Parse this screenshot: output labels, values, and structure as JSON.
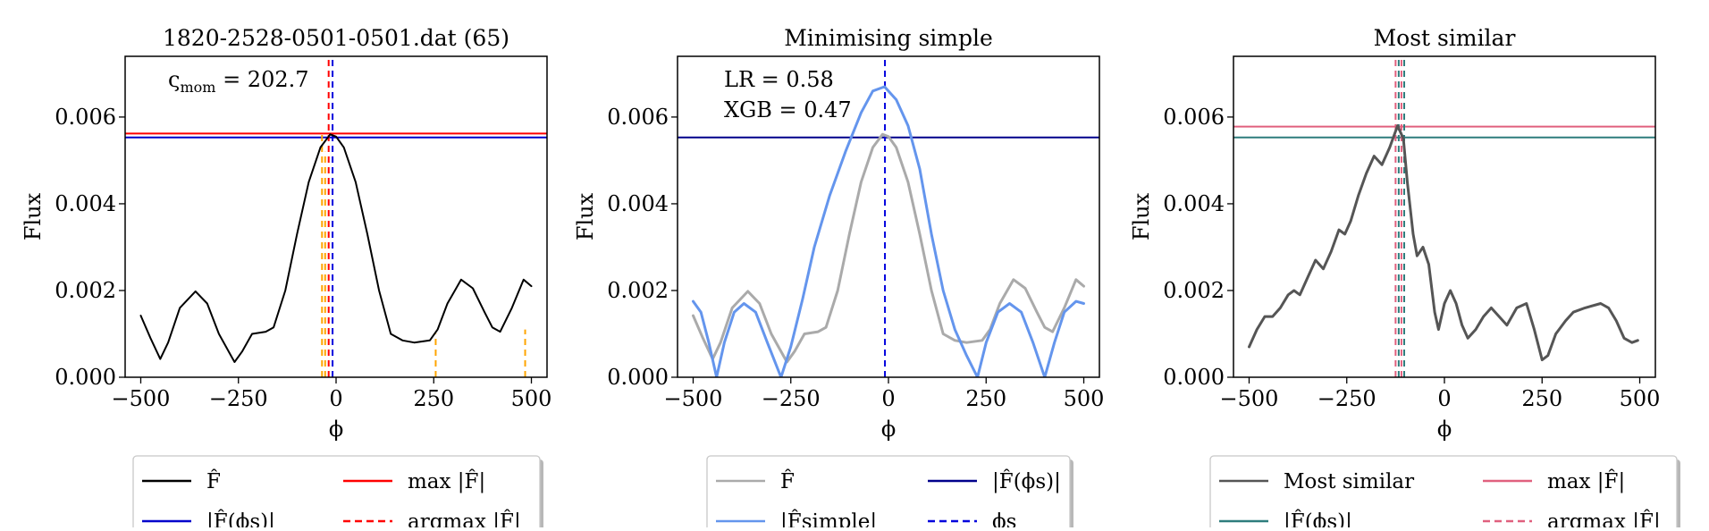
{
  "chart_data": [
    {
      "type": "line",
      "title": "1820-2528-0501-0501.dat (65)",
      "xlabel": "ϕ",
      "ylabel": "Flux",
      "xlim": [
        -540,
        540
      ],
      "ylim": [
        0,
        0.0074
      ],
      "xticks": [
        -500,
        -250,
        0,
        250,
        500
      ],
      "xtick_labels": [
        "−500",
        "−250",
        "0",
        "250",
        "500"
      ],
      "yticks": [
        0,
        0.002,
        0.004,
        0.006
      ],
      "ytick_labels": [
        "0.000",
        "0.002",
        "0.004",
        "0.006"
      ],
      "annotation": {
        "symbol": "ς",
        "sub": "mom",
        "text": " = 202.7"
      },
      "series": [
        {
          "key": "fhat",
          "color": "#000000",
          "style": "solid",
          "width": 2,
          "points": [
            [
              -500,
              0.00142
            ],
            [
              -475,
              0.0009
            ],
            [
              -450,
              0.00042
            ],
            [
              -430,
              0.0008
            ],
            [
              -400,
              0.0016
            ],
            [
              -360,
              0.00198
            ],
            [
              -330,
              0.0017
            ],
            [
              -300,
              0.001
            ],
            [
              -260,
              0.00035
            ],
            [
              -240,
              0.0006
            ],
            [
              -215,
              0.001
            ],
            [
              -180,
              0.00105
            ],
            [
              -160,
              0.00115
            ],
            [
              -130,
              0.002
            ],
            [
              -100,
              0.0033
            ],
            [
              -70,
              0.0045
            ],
            [
              -40,
              0.0053
            ],
            [
              -15,
              0.0056
            ],
            [
              0,
              0.00555
            ],
            [
              20,
              0.0053
            ],
            [
              50,
              0.0045
            ],
            [
              80,
              0.0033
            ],
            [
              110,
              0.002
            ],
            [
              140,
              0.001
            ],
            [
              170,
              0.00085
            ],
            [
              200,
              0.0008
            ],
            [
              240,
              0.00085
            ],
            [
              260,
              0.0011
            ],
            [
              285,
              0.0017
            ],
            [
              320,
              0.00225
            ],
            [
              350,
              0.00205
            ],
            [
              380,
              0.0015
            ],
            [
              400,
              0.00115
            ],
            [
              420,
              0.00105
            ],
            [
              450,
              0.0016
            ],
            [
              480,
              0.00225
            ],
            [
              500,
              0.0021
            ]
          ]
        }
      ],
      "hlines": [
        {
          "key": "max",
          "y": 0.00562,
          "color": "#ff0000",
          "style": "solid"
        },
        {
          "key": "fphis",
          "y": 0.00553,
          "color": "#0000cc",
          "style": "solid"
        }
      ],
      "vlines": [
        {
          "key": "argmax",
          "x": -19,
          "color": "#ff0000",
          "style": "dashed",
          "y0": 0,
          "y1": 0.0074
        },
        {
          "key": "phis",
          "x": -9,
          "color": "#0000dd",
          "style": "dashed",
          "y0": 0,
          "y1": 0.0074
        },
        {
          "key": "peak1",
          "x": -36,
          "color": "#ffa500",
          "style": "dashed",
          "y0": 0,
          "y1": 0.0056
        },
        {
          "key": "peak2",
          "x": -28,
          "color": "#ffa500",
          "style": "dashed",
          "y0": 0,
          "y1": 0.0052
        },
        {
          "key": "peak3",
          "x": 255,
          "color": "#ffa500",
          "style": "dashed",
          "y0": 0,
          "y1": 0.001
        },
        {
          "key": "peak4",
          "x": 484,
          "color": "#ffa500",
          "style": "dashed",
          "y0": 0,
          "y1": 0.0011
        }
      ],
      "legend": {
        "placement": "bottom",
        "items": [
          {
            "label": "F̂",
            "color": "#000000",
            "style": "solid"
          },
          {
            "label": "max |F̂|",
            "color": "#ff0000",
            "style": "solid"
          },
          {
            "label": "|F̂(ϕs)|",
            "color": "#0000cc",
            "style": "solid"
          },
          {
            "label": "argmax |F̂|",
            "color": "#ff0000",
            "style": "dashed"
          }
        ]
      }
    },
    {
      "type": "line",
      "title": "Minimising simple",
      "xlabel": "ϕ",
      "ylabel": "Flux",
      "xlim": [
        -540,
        540
      ],
      "ylim": [
        0,
        0.0074
      ],
      "xticks": [
        -500,
        -250,
        0,
        250,
        500
      ],
      "xtick_labels": [
        "−500",
        "−250",
        "0",
        "250",
        "500"
      ],
      "yticks": [
        0,
        0.002,
        0.004,
        0.006
      ],
      "ytick_labels": [
        "0.000",
        "0.002",
        "0.004",
        "0.006"
      ],
      "annotations": [
        "LR = 0.58",
        "XGB = 0.47"
      ],
      "series": [
        {
          "key": "fhat",
          "color": "#aaaaaa",
          "style": "solid",
          "width": 3,
          "points": [
            [
              -500,
              0.00142
            ],
            [
              -475,
              0.0009
            ],
            [
              -450,
              0.00042
            ],
            [
              -430,
              0.0008
            ],
            [
              -400,
              0.0016
            ],
            [
              -360,
              0.00198
            ],
            [
              -330,
              0.0017
            ],
            [
              -300,
              0.001
            ],
            [
              -260,
              0.00035
            ],
            [
              -240,
              0.0006
            ],
            [
              -215,
              0.001
            ],
            [
              -180,
              0.00105
            ],
            [
              -160,
              0.00115
            ],
            [
              -130,
              0.002
            ],
            [
              -100,
              0.0033
            ],
            [
              -70,
              0.0045
            ],
            [
              -40,
              0.0053
            ],
            [
              -15,
              0.0056
            ],
            [
              0,
              0.00555
            ],
            [
              20,
              0.0053
            ],
            [
              50,
              0.0045
            ],
            [
              80,
              0.0033
            ],
            [
              110,
              0.002
            ],
            [
              140,
              0.001
            ],
            [
              170,
              0.00085
            ],
            [
              200,
              0.0008
            ],
            [
              240,
              0.00085
            ],
            [
              260,
              0.0011
            ],
            [
              285,
              0.0017
            ],
            [
              320,
              0.00225
            ],
            [
              350,
              0.00205
            ],
            [
              380,
              0.0015
            ],
            [
              400,
              0.00115
            ],
            [
              420,
              0.00105
            ],
            [
              450,
              0.0016
            ],
            [
              480,
              0.00225
            ],
            [
              500,
              0.0021
            ]
          ]
        },
        {
          "key": "fsimple",
          "color": "#6495ed",
          "style": "solid",
          "width": 3,
          "points": [
            [
              -500,
              0.00175
            ],
            [
              -480,
              0.0015
            ],
            [
              -460,
              0.0008
            ],
            [
              -440,
              0.0
            ],
            [
              -420,
              0.0008
            ],
            [
              -395,
              0.0015
            ],
            [
              -370,
              0.0017
            ],
            [
              -340,
              0.0015
            ],
            [
              -310,
              0.0008
            ],
            [
              -275,
              0.0
            ],
            [
              -250,
              0.0007
            ],
            [
              -220,
              0.0018
            ],
            [
              -190,
              0.003
            ],
            [
              -150,
              0.0042
            ],
            [
              -110,
              0.0052
            ],
            [
              -70,
              0.0061
            ],
            [
              -40,
              0.0066
            ],
            [
              -10,
              0.0067
            ],
            [
              20,
              0.0064
            ],
            [
              50,
              0.0058
            ],
            [
              80,
              0.0048
            ],
            [
              110,
              0.0033
            ],
            [
              140,
              0.002
            ],
            [
              170,
              0.0011
            ],
            [
              200,
              0.0005
            ],
            [
              228,
              0.0
            ],
            [
              250,
              0.0008
            ],
            [
              280,
              0.0015
            ],
            [
              310,
              0.0017
            ],
            [
              340,
              0.0015
            ],
            [
              370,
              0.0008
            ],
            [
              400,
              0.0
            ],
            [
              425,
              0.0008
            ],
            [
              450,
              0.0015
            ],
            [
              480,
              0.00175
            ],
            [
              500,
              0.0017
            ]
          ]
        }
      ],
      "hlines": [
        {
          "key": "fphis",
          "y": 0.00553,
          "color": "#00008b",
          "style": "solid"
        }
      ],
      "vlines": [
        {
          "key": "phis",
          "x": -9,
          "color": "#0000dd",
          "style": "dashed",
          "y0": 0,
          "y1": 0.0074
        }
      ],
      "legend": {
        "placement": "bottom",
        "items": [
          {
            "label": "F̂",
            "color": "#aaaaaa",
            "style": "solid"
          },
          {
            "label": "|F̂(ϕs)|",
            "color": "#00008b",
            "style": "solid"
          },
          {
            "label": "|F̂simple|",
            "color": "#6495ed",
            "style": "solid"
          },
          {
            "label": "ϕs",
            "color": "#0000dd",
            "style": "dashed"
          }
        ]
      }
    },
    {
      "type": "line",
      "title": "Most similar",
      "xlabel": "ϕ",
      "ylabel": "Flux",
      "xlim": [
        -540,
        540
      ],
      "ylim": [
        0,
        0.0074
      ],
      "xticks": [
        -500,
        -250,
        0,
        250,
        500
      ],
      "xtick_labels": [
        "−500",
        "−250",
        "0",
        "250",
        "500"
      ],
      "yticks": [
        0,
        0.002,
        0.004,
        0.006
      ],
      "ytick_labels": [
        "0.000",
        "0.002",
        "0.004",
        "0.006"
      ],
      "series": [
        {
          "key": "similar",
          "color": "#555555",
          "style": "solid",
          "width": 3,
          "points": [
            [
              -500,
              0.0007
            ],
            [
              -480,
              0.0011
            ],
            [
              -460,
              0.0014
            ],
            [
              -440,
              0.0014
            ],
            [
              -420,
              0.0016
            ],
            [
              -400,
              0.0019
            ],
            [
              -385,
              0.002
            ],
            [
              -370,
              0.0019
            ],
            [
              -350,
              0.0023
            ],
            [
              -330,
              0.0027
            ],
            [
              -310,
              0.0025
            ],
            [
              -290,
              0.0029
            ],
            [
              -270,
              0.0034
            ],
            [
              -255,
              0.0033
            ],
            [
              -240,
              0.0036
            ],
            [
              -220,
              0.0042
            ],
            [
              -200,
              0.0047
            ],
            [
              -180,
              0.0051
            ],
            [
              -160,
              0.0049
            ],
            [
              -140,
              0.0053
            ],
            [
              -120,
              0.0058
            ],
            [
              -105,
              0.0055
            ],
            [
              -95,
              0.0045
            ],
            [
              -80,
              0.0033
            ],
            [
              -70,
              0.0028
            ],
            [
              -55,
              0.003
            ],
            [
              -40,
              0.0026
            ],
            [
              -25,
              0.0015
            ],
            [
              -15,
              0.0011
            ],
            [
              0,
              0.0017
            ],
            [
              15,
              0.002
            ],
            [
              30,
              0.0017
            ],
            [
              45,
              0.0012
            ],
            [
              60,
              0.0009
            ],
            [
              80,
              0.0011
            ],
            [
              100,
              0.0014
            ],
            [
              120,
              0.0016
            ],
            [
              140,
              0.0014
            ],
            [
              160,
              0.0012
            ],
            [
              185,
              0.0016
            ],
            [
              210,
              0.0017
            ],
            [
              230,
              0.0011
            ],
            [
              250,
              0.0004
            ],
            [
              265,
              0.0005
            ],
            [
              285,
              0.001
            ],
            [
              310,
              0.0013
            ],
            [
              330,
              0.0015
            ],
            [
              360,
              0.0016
            ],
            [
              400,
              0.0017
            ],
            [
              420,
              0.0016
            ],
            [
              440,
              0.0013
            ],
            [
              460,
              0.0009
            ],
            [
              480,
              0.0008
            ],
            [
              495,
              0.00085
            ]
          ]
        }
      ],
      "hlines": [
        {
          "key": "max",
          "y": 0.00578,
          "color": "#e0607e",
          "style": "solid"
        },
        {
          "key": "fphis",
          "y": 0.00553,
          "color": "#2e7d7d",
          "style": "solid"
        }
      ],
      "vlines": [
        {
          "key": "v1",
          "x": -125,
          "color": "#e0607e",
          "style": "dashed",
          "y0": 0,
          "y1": 0.0074
        },
        {
          "key": "v2",
          "x": -117,
          "color": "#2e7d7d",
          "style": "dashed",
          "y0": 0,
          "y1": 0.0074
        },
        {
          "key": "v3",
          "x": -110,
          "color": "#e0607e",
          "style": "dashed",
          "y0": 0,
          "y1": 0.0074
        },
        {
          "key": "v4",
          "x": -103,
          "color": "#2e7d7d",
          "style": "dashed",
          "y0": 0,
          "y1": 0.0074
        }
      ],
      "legend": {
        "placement": "bottom",
        "items": [
          {
            "label": "Most similar",
            "color": "#555555",
            "style": "solid"
          },
          {
            "label": "max |F̂|",
            "color": "#e0607e",
            "style": "solid"
          },
          {
            "label": "|F̂(ϕs)|",
            "color": "#2e7d7d",
            "style": "solid"
          },
          {
            "label": "argmax |F̂|",
            "color": "#e0607e",
            "style": "dashed"
          }
        ]
      }
    }
  ]
}
